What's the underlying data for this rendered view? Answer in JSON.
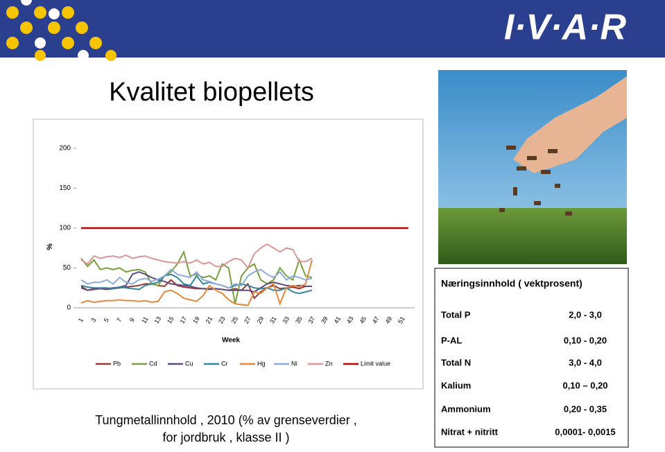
{
  "header": {
    "logo": "I·V·A·R"
  },
  "title": "Kvalitet biopellets",
  "chart_data": {
    "type": "line",
    "x_label": "Week",
    "y_label": "%",
    "categories": [
      "1",
      null,
      "3",
      null,
      "5",
      null,
      "7",
      null,
      "9",
      null,
      "11",
      null,
      "13",
      null,
      "15",
      null,
      "17",
      null,
      "19",
      null,
      "21",
      null,
      "23",
      null,
      "25",
      null,
      "27",
      null,
      "29",
      null,
      "31",
      null,
      "33",
      null,
      "35",
      null,
      "37",
      null,
      "39",
      null,
      "41",
      null,
      "43",
      null,
      "45",
      null,
      "47",
      null,
      "49",
      null,
      "51",
      null
    ],
    "ylim": [
      0,
      200
    ],
    "yticks": [
      0,
      50,
      100,
      150,
      200
    ],
    "grid": false,
    "series": [
      {
        "name": "Pb",
        "color": "#953735",
        "values": [
          27,
          22,
          24,
          24,
          23,
          24,
          25,
          26,
          27,
          28,
          30,
          30,
          28,
          27,
          35,
          28,
          26,
          25,
          24,
          24,
          23,
          24,
          23,
          22,
          24,
          22,
          30,
          12,
          20,
          25,
          28,
          24,
          25,
          26,
          24,
          27,
          27,
          null,
          null,
          null,
          null,
          null,
          null,
          null,
          null,
          null,
          null,
          null,
          null,
          null,
          null,
          null
        ]
      },
      {
        "name": "Cd",
        "color": "#77a03c",
        "values": [
          62,
          52,
          60,
          48,
          50,
          48,
          50,
          45,
          47,
          48,
          45,
          30,
          28,
          40,
          45,
          55,
          70,
          40,
          42,
          38,
          40,
          35,
          55,
          50,
          5,
          40,
          50,
          55,
          35,
          30,
          35,
          50,
          40,
          35,
          60,
          40,
          38,
          null,
          null,
          null,
          null,
          null,
          null,
          null,
          null,
          null,
          null,
          null,
          null,
          null,
          null,
          null
        ]
      },
      {
        "name": "Cu",
        "color": "#604a7b",
        "values": [
          25,
          22,
          23,
          24,
          24,
          25,
          26,
          28,
          42,
          45,
          42,
          38,
          35,
          33,
          30,
          29,
          28,
          27,
          25,
          24,
          24,
          24,
          23,
          22,
          22,
          22,
          22,
          20,
          25,
          30,
          32,
          30,
          28,
          27,
          28,
          27,
          27,
          null,
          null,
          null,
          null,
          null,
          null,
          null,
          null,
          null,
          null,
          null,
          null,
          null,
          null,
          null
        ]
      },
      {
        "name": "Cr",
        "color": "#31859c",
        "values": [
          28,
          26,
          25,
          25,
          25,
          24,
          26,
          25,
          24,
          23,
          28,
          30,
          32,
          40,
          42,
          38,
          30,
          28,
          40,
          30,
          32,
          30,
          28,
          25,
          28,
          30,
          28,
          25,
          24,
          25,
          22,
          22,
          25,
          20,
          18,
          20,
          22,
          null,
          null,
          null,
          null,
          null,
          null,
          null,
          null,
          null,
          null,
          null,
          null,
          null,
          null,
          null
        ]
      },
      {
        "name": "Hg",
        "color": "#e3883a",
        "values": [
          6,
          9,
          7,
          8,
          9,
          9,
          10,
          9,
          9,
          8,
          9,
          7,
          8,
          20,
          22,
          18,
          12,
          10,
          8,
          15,
          28,
          22,
          18,
          10,
          5,
          4,
          3,
          20,
          18,
          25,
          30,
          5,
          25,
          28,
          26,
          30,
          60,
          null,
          null,
          null,
          null,
          null,
          null,
          null,
          null,
          null,
          null,
          null,
          null,
          null,
          null,
          null
        ]
      },
      {
        "name": "Ni",
        "color": "#8eaadb",
        "values": [
          35,
          30,
          32,
          32,
          35,
          30,
          38,
          32,
          30,
          35,
          37,
          33,
          36,
          40,
          48,
          42,
          40,
          38,
          45,
          35,
          33,
          30,
          28,
          25,
          30,
          28,
          40,
          45,
          48,
          42,
          38,
          45,
          35,
          40,
          38,
          35,
          37,
          null,
          null,
          null,
          null,
          null,
          null,
          null,
          null,
          null,
          null,
          null,
          null,
          null,
          null,
          null
        ]
      },
      {
        "name": "Zn",
        "color": "#d99694",
        "values": [
          60,
          55,
          65,
          62,
          64,
          65,
          63,
          66,
          62,
          64,
          65,
          62,
          60,
          58,
          57,
          56,
          58,
          56,
          60,
          55,
          57,
          52,
          52,
          58,
          62,
          60,
          50,
          68,
          75,
          80,
          75,
          70,
          75,
          73,
          58,
          58,
          62,
          null,
          null,
          null,
          null,
          null,
          null,
          null,
          null,
          null,
          null,
          null,
          null,
          null,
          null,
          null
        ]
      },
      {
        "name": "Limit value",
        "color": "#c00000",
        "values": [
          100,
          100,
          100,
          100,
          100,
          100,
          100,
          100,
          100,
          100,
          100,
          100,
          100,
          100,
          100,
          100,
          100,
          100,
          100,
          100,
          100,
          100,
          100,
          100,
          100,
          100,
          100,
          100,
          100,
          100,
          100,
          100,
          100,
          100,
          100,
          100,
          100,
          100,
          100,
          100,
          100,
          100,
          100,
          100,
          100,
          100,
          100,
          100,
          100,
          100,
          100,
          100
        ]
      }
    ]
  },
  "caption": [
    "Tungmetallinnhold , 2010 (% av grenseverdier ,",
    "for jordbruk , klasse II )"
  ],
  "table": {
    "title": "Næringsinnhold ( vektprosent)",
    "rows": [
      [
        "Total P",
        "2,0 - 3,0"
      ],
      [
        "P-AL",
        "0,10 - 0,20"
      ],
      [
        "Total N",
        "3,0 - 4,0"
      ],
      [
        "Kalium",
        "0,10 – 0,20"
      ],
      [
        "Ammonium",
        "0,20 - 0,35"
      ],
      [
        "Nitrat + nitritt",
        "0,0001- 0,0015"
      ]
    ]
  }
}
